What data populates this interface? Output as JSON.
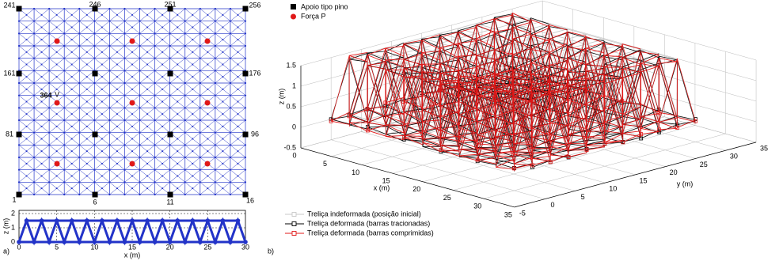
{
  "panel_a": {
    "label": "a)",
    "node_labels": [
      "241",
      "246",
      "251",
      "256",
      "161",
      "176",
      "81",
      "96",
      "1",
      "6",
      "11",
      "16",
      "364"
    ],
    "member_label": "V",
    "legend": [
      "Apoio tipo pino",
      "Força P"
    ],
    "elevation": {
      "xticks": [
        "0",
        "5",
        "10",
        "15",
        "20",
        "25",
        "30"
      ],
      "yticks": [
        "0",
        "1",
        "2"
      ],
      "xlabel": "x (m)",
      "ylabel": "z (m)"
    }
  },
  "panel_b": {
    "label": "b)",
    "zticks": [
      "1.5",
      "1",
      "0.5",
      "0",
      "-0.5"
    ],
    "xticks": [
      "0",
      "5",
      "10",
      "15",
      "20",
      "25",
      "30",
      "35"
    ],
    "yticks": [
      "-5",
      "0",
      "5",
      "10",
      "15",
      "20",
      "25",
      "30",
      "35"
    ],
    "xlabel": "x (m)",
    "ylabel": "y (m)",
    "zlabel": "z (m)",
    "legend": [
      "Treliça indeformada (posição inicial)",
      "Treliça deformada (barras tracionadas)",
      "Treliça deformada (barras comprimidas)"
    ]
  }
}
